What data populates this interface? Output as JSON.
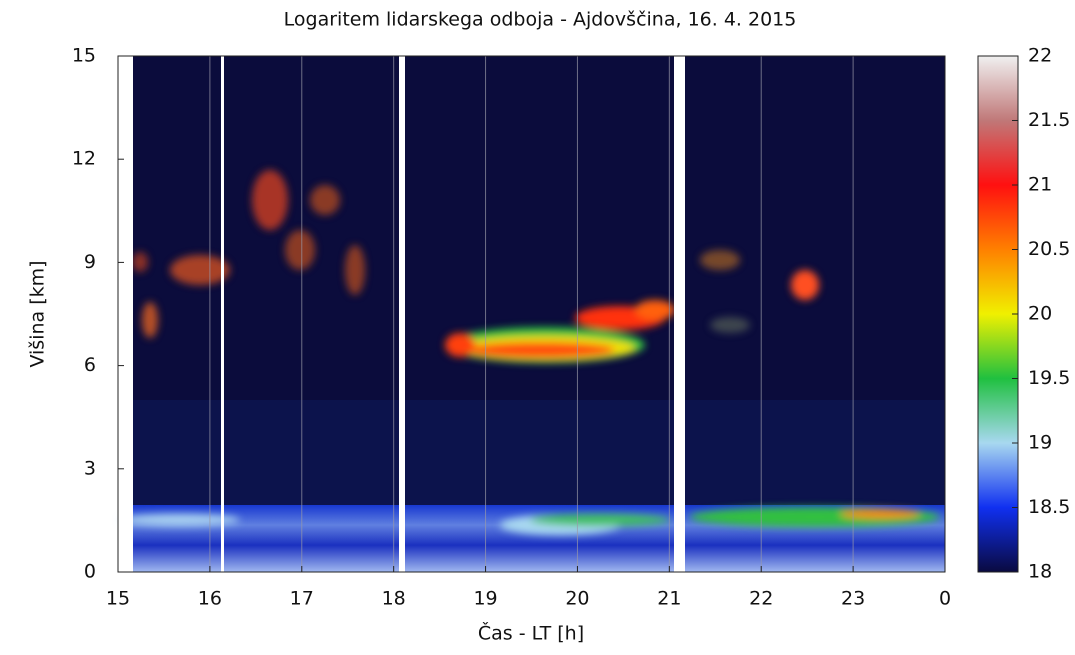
{
  "chart_data": {
    "type": "heatmap",
    "title": "Logaritem lidarskega odboja - Ajdovščina, 16. 4. 2015",
    "x_label": "Čas - LT [h]",
    "y_label": "Višina [km]",
    "xlim": [
      15,
      24
    ],
    "xticks": [
      15,
      16,
      17,
      18,
      19,
      20,
      21,
      22,
      23,
      {
        "value": 24,
        "label": "0"
      }
    ],
    "ylim": [
      0,
      15
    ],
    "yticks": [
      0,
      3,
      6,
      9,
      12,
      15
    ],
    "zlim": [
      18,
      22
    ],
    "zticks": [
      18,
      18.5,
      19,
      19.5,
      20,
      20.5,
      21,
      21.5,
      22
    ],
    "colorscale": [
      "#0a0a40",
      "#1030f0",
      "#a8d8f0",
      "#20c040",
      "#f0f000",
      "#ff8000",
      "#ff1010",
      "#c07878",
      "#f0f0f0"
    ],
    "grid": true
  }
}
